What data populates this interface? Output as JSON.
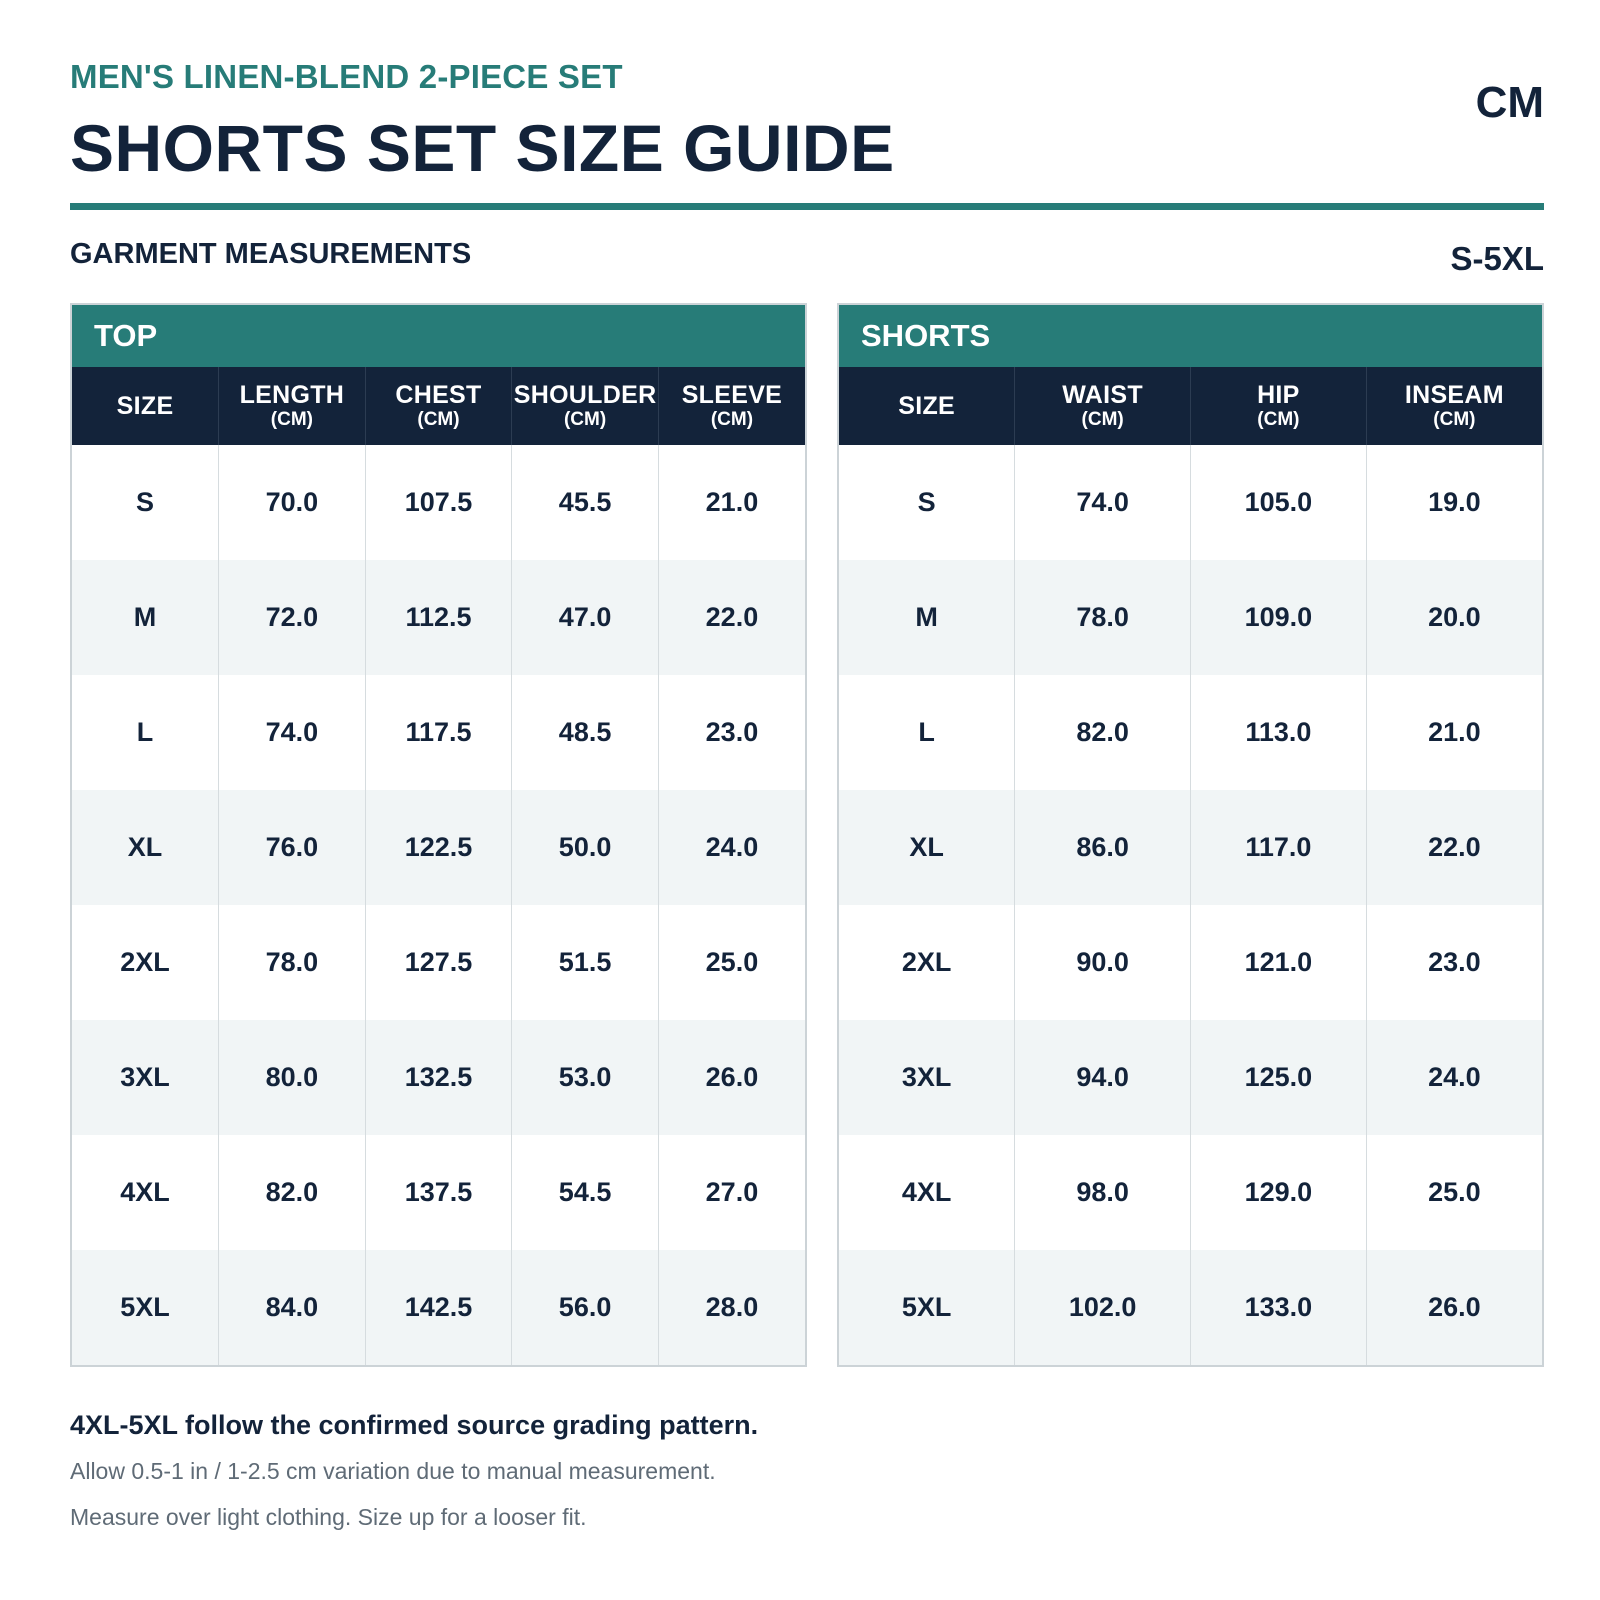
{
  "header": {
    "subtitle": "MEN'S LINEN-BLEND 2-PIECE SET",
    "title": "SHORTS SET SIZE GUIDE",
    "unit": "CM"
  },
  "section": {
    "label": "GARMENT MEASUREMENTS",
    "range": "S-5XL"
  },
  "colors": {
    "accent": "#277c78",
    "header_dark": "#13233a",
    "row_alt": "#f1f5f6"
  },
  "top_table": {
    "title": "TOP",
    "columns": [
      {
        "label": "SIZE",
        "unit": ""
      },
      {
        "label": "LENGTH",
        "unit": "(CM)"
      },
      {
        "label": "CHEST",
        "unit": "(CM)"
      },
      {
        "label": "SHOULDER",
        "unit": "(CM)"
      },
      {
        "label": "SLEEVE",
        "unit": "(CM)"
      }
    ],
    "rows": [
      [
        "S",
        "70.0",
        "107.5",
        "45.5",
        "21.0"
      ],
      [
        "M",
        "72.0",
        "112.5",
        "47.0",
        "22.0"
      ],
      [
        "L",
        "74.0",
        "117.5",
        "48.5",
        "23.0"
      ],
      [
        "XL",
        "76.0",
        "122.5",
        "50.0",
        "24.0"
      ],
      [
        "2XL",
        "78.0",
        "127.5",
        "51.5",
        "25.0"
      ],
      [
        "3XL",
        "80.0",
        "132.5",
        "53.0",
        "26.0"
      ],
      [
        "4XL",
        "82.0",
        "137.5",
        "54.5",
        "27.0"
      ],
      [
        "5XL",
        "84.0",
        "142.5",
        "56.0",
        "28.0"
      ]
    ]
  },
  "shorts_table": {
    "title": "SHORTS",
    "columns": [
      {
        "label": "SIZE",
        "unit": ""
      },
      {
        "label": "WAIST",
        "unit": "(CM)"
      },
      {
        "label": "HIP",
        "unit": "(CM)"
      },
      {
        "label": "INSEAM",
        "unit": "(CM)"
      }
    ],
    "rows": [
      [
        "S",
        "74.0",
        "105.0",
        "19.0"
      ],
      [
        "M",
        "78.0",
        "109.0",
        "20.0"
      ],
      [
        "L",
        "82.0",
        "113.0",
        "21.0"
      ],
      [
        "XL",
        "86.0",
        "117.0",
        "22.0"
      ],
      [
        "2XL",
        "90.0",
        "121.0",
        "23.0"
      ],
      [
        "3XL",
        "94.0",
        "125.0",
        "24.0"
      ],
      [
        "4XL",
        "98.0",
        "129.0",
        "25.0"
      ],
      [
        "5XL",
        "102.0",
        "133.0",
        "26.0"
      ]
    ]
  },
  "notes": {
    "bold": "4XL-5XL follow the confirmed source grading pattern.",
    "lines": [
      "Allow 0.5-1 in / 1-2.5 cm variation due to manual measurement.",
      "Measure over light clothing. Size up for a looser fit."
    ]
  }
}
